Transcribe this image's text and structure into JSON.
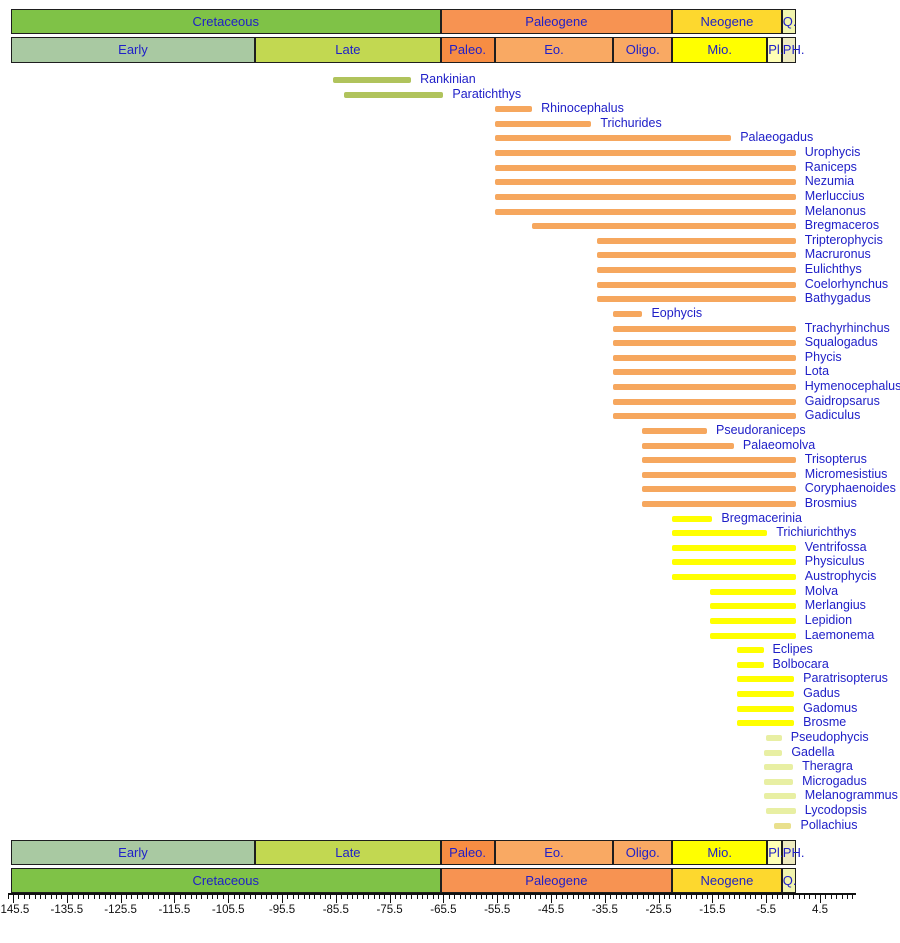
{
  "chart_data": {
    "type": "bar",
    "subtype": "horizontal-taxon-range-chart",
    "title": "",
    "xlabel": "",
    "ylabel": "",
    "unit": "Ma",
    "x_range": [
      -147,
      11
    ],
    "grid": false,
    "legend": "none",
    "text_color": "#2020c8",
    "axis_color": "#111111",
    "timescale_periods": [
      {
        "label": "Cretaceous",
        "start": -145.9,
        "end": -66.0,
        "color": "#7fc247"
      },
      {
        "label": "Paleogene",
        "start": -66.0,
        "end": -23.0,
        "color": "#f79352"
      },
      {
        "label": "Neogene",
        "start": -23.0,
        "end": -2.6,
        "color": "#fdd82e"
      },
      {
        "label": "Q.",
        "start": -2.6,
        "end": 0.0,
        "color": "#f1f4ad"
      }
    ],
    "timescale_epochs": [
      {
        "label": "Early",
        "start": -145.9,
        "end": -100.5,
        "color": "#a9c9a2"
      },
      {
        "label": "Late",
        "start": -100.5,
        "end": -66.0,
        "color": "#c2d851"
      },
      {
        "label": "Paleo.",
        "start": -66.0,
        "end": -56.0,
        "color": "#f78d43"
      },
      {
        "label": "Eo.",
        "start": -56.0,
        "end": -33.9,
        "color": "#f9a963"
      },
      {
        "label": "Oligo.",
        "start": -33.9,
        "end": -23.0,
        "color": "#f9a963"
      },
      {
        "label": "Mio.",
        "start": -23.0,
        "end": -5.3,
        "color": "#ffff00"
      },
      {
        "label": "Pl.",
        "start": -5.3,
        "end": -2.6,
        "color": "#ffffb5"
      },
      {
        "label": "PH.",
        "start": -2.6,
        "end": 0.0,
        "color": "#eeebc0"
      }
    ],
    "group_colors": {
      "cretaceous": "#b0c35c",
      "paleogene": "#f6a75e",
      "neogene": "#ffff00",
      "pliocene": "#e8efa3",
      "pliocene_tan": "#e9e08d"
    },
    "taxa": [
      {
        "name": "Rankinian",
        "start": -86.0,
        "end": -71.5,
        "group": "cretaceous"
      },
      {
        "name": "Paratichthys",
        "start": -84.0,
        "end": -65.5,
        "group": "cretaceous"
      },
      {
        "name": "Rhinocephalus",
        "start": -56.0,
        "end": -49.0,
        "group": "paleogene"
      },
      {
        "name": "Trichurides",
        "start": -56.0,
        "end": -38.0,
        "group": "paleogene"
      },
      {
        "name": "Palaeogadus",
        "start": -56.0,
        "end": -12.0,
        "group": "paleogene"
      },
      {
        "name": "Urophycis",
        "start": -56.0,
        "end": 0.0,
        "group": "paleogene"
      },
      {
        "name": "Raniceps",
        "start": -56.0,
        "end": 0.0,
        "group": "paleogene"
      },
      {
        "name": "Nezumia",
        "start": -56.0,
        "end": 0.0,
        "group": "paleogene"
      },
      {
        "name": "Merluccius",
        "start": -56.0,
        "end": 0.0,
        "group": "paleogene"
      },
      {
        "name": "Melanonus",
        "start": -56.0,
        "end": 0.0,
        "group": "paleogene"
      },
      {
        "name": "Bregmaceros",
        "start": -49.0,
        "end": 0.0,
        "group": "paleogene"
      },
      {
        "name": "Tripterophycis",
        "start": -37.0,
        "end": 0.0,
        "group": "paleogene"
      },
      {
        "name": "Macruronus",
        "start": -37.0,
        "end": 0.0,
        "group": "paleogene"
      },
      {
        "name": "Eulichthys",
        "start": -37.0,
        "end": 0.0,
        "group": "paleogene"
      },
      {
        "name": "Coelorhynchus",
        "start": -37.0,
        "end": 0.0,
        "group": "paleogene"
      },
      {
        "name": "Bathygadus",
        "start": -37.0,
        "end": 0.0,
        "group": "paleogene"
      },
      {
        "name": "Eophycis",
        "start": -34.0,
        "end": -28.5,
        "group": "paleogene"
      },
      {
        "name": "Trachyrhinchus",
        "start": -34.0,
        "end": 0.0,
        "group": "paleogene"
      },
      {
        "name": "Squalogadus",
        "start": -34.0,
        "end": 0.0,
        "group": "paleogene"
      },
      {
        "name": "Phycis",
        "start": -34.0,
        "end": 0.0,
        "group": "paleogene"
      },
      {
        "name": "Lota",
        "start": -34.0,
        "end": 0.0,
        "group": "paleogene"
      },
      {
        "name": "Hymenocephalus",
        "start": -34.0,
        "end": 0.0,
        "group": "paleogene"
      },
      {
        "name": "Gaidropsarus",
        "start": -34.0,
        "end": 0.0,
        "group": "paleogene"
      },
      {
        "name": "Gadiculus",
        "start": -34.0,
        "end": 0.0,
        "group": "paleogene"
      },
      {
        "name": "Pseudoraniceps",
        "start": -28.5,
        "end": -16.5,
        "group": "paleogene"
      },
      {
        "name": "Palaeomolva",
        "start": -28.5,
        "end": -11.5,
        "group": "paleogene"
      },
      {
        "name": "Trisopterus",
        "start": -28.5,
        "end": 0.0,
        "group": "paleogene"
      },
      {
        "name": "Micromesistius",
        "start": -28.5,
        "end": 0.0,
        "group": "paleogene"
      },
      {
        "name": "Coryphaenoides",
        "start": -28.5,
        "end": 0.0,
        "group": "paleogene"
      },
      {
        "name": "Brosmius",
        "start": -28.5,
        "end": 0.0,
        "group": "paleogene"
      },
      {
        "name": "Bregmacerinia",
        "start": -23.0,
        "end": -15.5,
        "group": "neogene"
      },
      {
        "name": "Trichiurichthys",
        "start": -23.0,
        "end": -5.3,
        "group": "neogene"
      },
      {
        "name": "Ventrifossa",
        "start": -23.0,
        "end": 0.0,
        "group": "neogene"
      },
      {
        "name": "Physiculus",
        "start": -23.0,
        "end": 0.0,
        "group": "neogene"
      },
      {
        "name": "Austrophycis",
        "start": -23.0,
        "end": 0.0,
        "group": "neogene"
      },
      {
        "name": "Molva",
        "start": -16.0,
        "end": 0.0,
        "group": "neogene"
      },
      {
        "name": "Merlangius",
        "start": -16.0,
        "end": 0.0,
        "group": "neogene"
      },
      {
        "name": "Lepidion",
        "start": -16.0,
        "end": 0.0,
        "group": "neogene"
      },
      {
        "name": "Laemonema",
        "start": -16.0,
        "end": 0.0,
        "group": "neogene"
      },
      {
        "name": "Eclipes",
        "start": -11.0,
        "end": -6.0,
        "group": "neogene"
      },
      {
        "name": "Bolbocara",
        "start": -11.0,
        "end": -6.0,
        "group": "neogene"
      },
      {
        "name": "Paratrisopterus",
        "start": -11.0,
        "end": -0.3,
        "group": "neogene"
      },
      {
        "name": "Gadus",
        "start": -11.0,
        "end": -0.3,
        "group": "neogene"
      },
      {
        "name": "Gadomus",
        "start": -11.0,
        "end": -0.3,
        "group": "neogene"
      },
      {
        "name": "Brosme",
        "start": -11.0,
        "end": -0.3,
        "group": "neogene"
      },
      {
        "name": "Pseudophycis",
        "start": -5.5,
        "end": -2.6,
        "group": "pliocene"
      },
      {
        "name": "Gadella",
        "start": -6.0,
        "end": -2.5,
        "group": "pliocene"
      },
      {
        "name": "Theragra",
        "start": -6.0,
        "end": -0.5,
        "group": "pliocene"
      },
      {
        "name": "Microgadus",
        "start": -6.0,
        "end": -0.5,
        "group": "pliocene"
      },
      {
        "name": "Melanogrammus",
        "start": -6.0,
        "end": 0.0,
        "group": "pliocene"
      },
      {
        "name": "Lycodopsis",
        "start": -5.5,
        "end": 0.0,
        "group": "pliocene"
      },
      {
        "name": "Pollachius",
        "start": -4.0,
        "end": -0.8,
        "group": "pliocene_tan"
      }
    ],
    "axis_ticks": [
      {
        "t": -145.5,
        "label": "-145.5"
      },
      {
        "t": -135.5,
        "label": "-135.5"
      },
      {
        "t": -125.5,
        "label": "-125.5"
      },
      {
        "t": -115.5,
        "label": "-115.5"
      },
      {
        "t": -105.5,
        "label": "-105.5"
      },
      {
        "t": -95.5,
        "label": "-95.5"
      },
      {
        "t": -85.5,
        "label": "-85.5"
      },
      {
        "t": -75.5,
        "label": "-75.5"
      },
      {
        "t": -65.5,
        "label": "-65.5"
      },
      {
        "t": -55.5,
        "label": "-55.5"
      },
      {
        "t": -45.5,
        "label": "-45.5"
      },
      {
        "t": -35.5,
        "label": "-35.5"
      },
      {
        "t": -25.5,
        "label": "-25.5"
      },
      {
        "t": -15.5,
        "label": "-15.5"
      },
      {
        "t": -5.5,
        "label": "-5.5"
      },
      {
        "t": 4.5,
        "label": "4.5"
      }
    ],
    "minor_tick_step": 1
  }
}
